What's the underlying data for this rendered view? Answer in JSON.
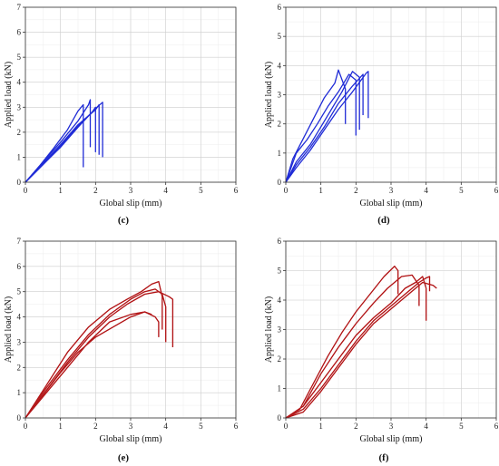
{
  "colors": {
    "blue": "#1f2bd6",
    "red": "#b01212",
    "halo": "#f6b3cf",
    "grid": "#cfcfcf"
  },
  "chart_data": [
    {
      "label": "(c)",
      "type": "line",
      "xlabel": "Global slip (mm)",
      "ylabel": "Applied load (kN)",
      "xlim": [
        0,
        6
      ],
      "ylim": [
        0,
        7
      ],
      "xticks": [
        "0",
        "1",
        "2",
        "3",
        "4",
        "5",
        "6"
      ],
      "yticks": [
        "0",
        "1",
        "2",
        "3",
        "4",
        "5",
        "6",
        "7"
      ],
      "grid": true,
      "color": "blue",
      "series": [
        {
          "x": [
            0,
            0.4,
            0.8,
            1.2,
            1.5,
            1.65,
            1.65
          ],
          "y": [
            0,
            0.65,
            1.35,
            2.1,
            2.85,
            3.1,
            0.6
          ]
        },
        {
          "x": [
            0,
            0.5,
            1.0,
            1.5,
            1.8,
            1.85,
            1.85
          ],
          "y": [
            0,
            0.8,
            1.6,
            2.45,
            3.1,
            3.3,
            1.4
          ]
        },
        {
          "x": [
            0,
            0.5,
            1.0,
            1.5,
            1.9,
            2.0,
            2.0
          ],
          "y": [
            0,
            0.7,
            1.45,
            2.25,
            2.8,
            3.0,
            1.2
          ]
        },
        {
          "x": [
            0,
            0.5,
            1.0,
            1.5,
            2.0,
            2.1,
            2.1
          ],
          "y": [
            0,
            0.75,
            1.5,
            2.3,
            2.9,
            3.1,
            1.1
          ]
        },
        {
          "x": [
            0,
            0.5,
            1.0,
            1.5,
            2.0,
            2.2,
            2.2
          ],
          "y": [
            0,
            0.7,
            1.4,
            2.2,
            2.95,
            3.2,
            1.0
          ]
        }
      ]
    },
    {
      "label": "(d)",
      "type": "line",
      "xlabel": "Global slip (mm)",
      "ylabel": "Applied load (kN)",
      "xlim": [
        0,
        6
      ],
      "ylim": [
        0,
        6
      ],
      "xticks": [
        "0",
        "1",
        "2",
        "3",
        "4",
        "5",
        "6"
      ],
      "yticks": [
        "0",
        "1",
        "2",
        "3",
        "4",
        "5",
        "6"
      ],
      "grid": true,
      "color": "blue",
      "series": [
        {
          "x": [
            0,
            0.2,
            0.5,
            0.8,
            1.1,
            1.4,
            1.5,
            1.7,
            1.7
          ],
          "y": [
            0,
            0.8,
            1.5,
            2.2,
            2.9,
            3.4,
            3.85,
            3.2,
            2.0
          ]
        },
        {
          "x": [
            0,
            0.3,
            0.6,
            0.9,
            1.2,
            1.5,
            1.8,
            2.0,
            2.0
          ],
          "y": [
            0,
            1.0,
            1.45,
            2.0,
            2.6,
            3.1,
            3.7,
            3.5,
            1.6
          ]
        },
        {
          "x": [
            0,
            0.3,
            0.7,
            1.0,
            1.3,
            1.6,
            1.9,
            2.1,
            2.1
          ],
          "y": [
            0,
            0.7,
            1.3,
            1.9,
            2.5,
            3.1,
            3.8,
            3.6,
            1.8
          ]
        },
        {
          "x": [
            0,
            0.3,
            0.7,
            1.1,
            1.5,
            1.9,
            2.2,
            2.2
          ],
          "y": [
            0,
            0.6,
            1.2,
            1.9,
            2.7,
            3.3,
            3.7,
            2.3
          ]
        },
        {
          "x": [
            0,
            0.3,
            0.7,
            1.1,
            1.5,
            1.9,
            2.3,
            2.35,
            2.35
          ],
          "y": [
            0,
            0.5,
            1.1,
            1.8,
            2.5,
            3.1,
            3.75,
            3.8,
            2.2
          ]
        }
      ]
    },
    {
      "label": "(e)",
      "type": "line",
      "xlabel": "Global slip (mm)",
      "ylabel": "Applied load (kN)",
      "xlim": [
        0,
        6
      ],
      "ylim": [
        0,
        7
      ],
      "xticks": [
        "0",
        "1",
        "2",
        "3",
        "4",
        "5",
        "6"
      ],
      "yticks": [
        "0",
        "1",
        "2",
        "3",
        "4",
        "5",
        "6",
        "7"
      ],
      "grid": true,
      "color": "red",
      "series": [
        {
          "x": [
            0,
            0.6,
            1.2,
            1.8,
            2.4,
            3.0,
            3.4,
            3.7,
            3.8,
            3.8
          ],
          "y": [
            0,
            1.0,
            2.0,
            3.0,
            3.8,
            4.1,
            4.2,
            4.0,
            3.8,
            3.2
          ]
        },
        {
          "x": [
            0,
            0.6,
            1.2,
            1.8,
            2.4,
            3.0,
            3.4,
            3.7,
            3.9,
            4.0,
            4.0
          ],
          "y": [
            0,
            1.2,
            2.3,
            3.3,
            4.1,
            4.7,
            5.0,
            5.1,
            4.9,
            4.4,
            3.0
          ]
        },
        {
          "x": [
            0,
            0.6,
            1.2,
            1.8,
            2.4,
            2.9,
            3.4,
            3.8,
            4.1,
            4.2,
            4.2
          ],
          "y": [
            0,
            1.1,
            2.2,
            3.2,
            4.0,
            4.5,
            4.9,
            5.0,
            4.8,
            4.7,
            2.8
          ]
        },
        {
          "x": [
            0,
            0.6,
            1.2,
            1.8,
            2.4,
            2.9,
            3.3,
            3.6,
            3.8,
            3.9,
            3.9
          ],
          "y": [
            0,
            1.3,
            2.6,
            3.6,
            4.3,
            4.7,
            5.0,
            5.3,
            5.4,
            4.8,
            3.5
          ]
        },
        {
          "x": [
            0,
            0.5,
            1.0,
            1.5,
            2.0,
            2.5,
            3.0,
            3.4,
            3.6
          ],
          "y": [
            0,
            0.9,
            1.8,
            2.6,
            3.2,
            3.6,
            4.0,
            4.2,
            4.1
          ]
        }
      ]
    },
    {
      "label": "(f)",
      "type": "line",
      "xlabel": "Global slip (mm)",
      "ylabel": "Applied load (kN)",
      "xlim": [
        0,
        6
      ],
      "ylim": [
        0,
        6
      ],
      "xticks": [
        "0",
        "1",
        "2",
        "3",
        "4",
        "5",
        "6"
      ],
      "yticks": [
        "0",
        "1",
        "2",
        "3",
        "4",
        "5",
        "6"
      ],
      "grid": true,
      "color": "red",
      "series": [
        {
          "x": [
            0,
            0.4,
            0.8,
            1.2,
            1.6,
            2.0,
            2.4,
            2.8,
            3.1,
            3.2,
            3.2
          ],
          "y": [
            0,
            0.3,
            1.2,
            2.1,
            2.9,
            3.6,
            4.2,
            4.8,
            5.15,
            5.0,
            4.2
          ]
        },
        {
          "x": [
            0,
            0.5,
            1.0,
            1.5,
            2.0,
            2.5,
            3.0,
            3.4,
            3.7,
            3.9,
            4.0,
            4.0
          ],
          "y": [
            0,
            0.4,
            1.2,
            2.0,
            2.8,
            3.4,
            3.9,
            4.4,
            4.6,
            4.8,
            4.4,
            3.3
          ]
        },
        {
          "x": [
            0,
            0.5,
            1.0,
            1.5,
            2.0,
            2.5,
            3.0,
            3.5,
            3.8,
            4.0,
            4.1,
            4.1
          ],
          "y": [
            0,
            0.3,
            1.0,
            1.8,
            2.6,
            3.3,
            3.8,
            4.3,
            4.6,
            4.75,
            4.8,
            4.3
          ]
        },
        {
          "x": [
            0,
            0.5,
            1.0,
            1.5,
            2.0,
            2.5,
            3.0,
            3.5,
            3.9,
            4.2,
            4.3
          ],
          "y": [
            0,
            0.2,
            0.9,
            1.7,
            2.5,
            3.2,
            3.7,
            4.2,
            4.6,
            4.5,
            4.4
          ]
        },
        {
          "x": [
            0,
            0.5,
            1.0,
            1.5,
            2.0,
            2.5,
            2.9,
            3.3,
            3.6,
            3.8,
            3.8
          ],
          "y": [
            0,
            0.4,
            1.5,
            2.4,
            3.2,
            3.9,
            4.4,
            4.8,
            4.85,
            4.5,
            3.8
          ]
        }
      ]
    }
  ]
}
